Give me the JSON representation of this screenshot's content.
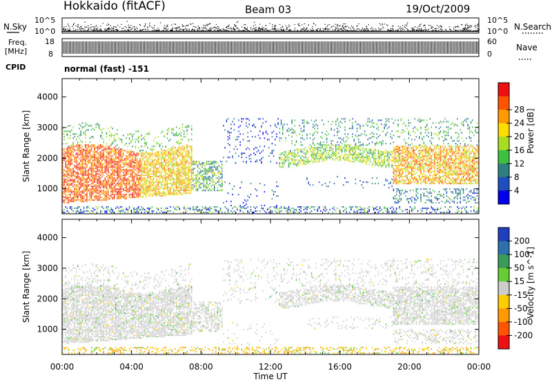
{
  "header": {
    "title": "Hokkaido (fitACF)",
    "beam": "Beam 03",
    "date": "19/Oct/2009"
  },
  "strip_labels": {
    "nsky": "N.Sky",
    "nsearch": "N.Search",
    "freq": "Freq.",
    "mhz": "[MHz]",
    "cpid": "CPID",
    "nave": "Nave",
    "mode": "normal (fast) -151"
  },
  "chart_data": [
    {
      "type": "scatter",
      "name_hint": "noise-strip",
      "yticks_left": [
        "10^5",
        "10^0"
      ],
      "yticks_right": [
        "10^5",
        "10^0"
      ],
      "ylim": [
        0,
        5
      ]
    },
    {
      "type": "line",
      "name_hint": "frequency-strip",
      "yticks_left": [
        "18",
        "8"
      ],
      "yticks_right": [
        "60",
        "0"
      ],
      "ylim": [
        8,
        18
      ]
    },
    {
      "type": "heatmap",
      "name_hint": "power-panel",
      "ylabel": "Slant Range [km]",
      "yticks": [
        1000,
        2000,
        3000,
        4000
      ],
      "ylim": [
        180,
        4600
      ],
      "xlim": [
        0,
        24
      ],
      "colorbar_label": "Power [dB]",
      "colorbar_ticks": [
        "4",
        "8",
        "12",
        "16",
        "20",
        "24",
        "28"
      ],
      "colorbar_colors": [
        "#0000ee",
        "#1f4fbf",
        "#2e7f7f",
        "#3fbf3f",
        "#aadd22",
        "#ffdd00",
        "#ff9900",
        "#ff5500",
        "#ee1111"
      ]
    },
    {
      "type": "heatmap",
      "name_hint": "velocity-panel",
      "ylabel": "Slant Range [km]",
      "yticks": [
        1000,
        2000,
        3000,
        4000
      ],
      "ylim": [
        180,
        4600
      ],
      "xlim": [
        0,
        24
      ],
      "xlabel": "Time UT",
      "xticks": [
        "00:00",
        "04:00",
        "08:00",
        "12:00",
        "16:00",
        "20:00",
        "00:00"
      ],
      "colorbar_label": "Velocity [m s^-1]",
      "colorbar_ticks": [
        "200",
        "100",
        "50",
        "15",
        "-15",
        "-50",
        "-100",
        "-200"
      ],
      "colorbar_colors": [
        "#1f3fbf",
        "#2e6fae",
        "#3a9a5a",
        "#66cc33",
        "#cccccc",
        "#ffcc00",
        "#ff9900",
        "#ff5500",
        "#ee1111"
      ]
    }
  ]
}
